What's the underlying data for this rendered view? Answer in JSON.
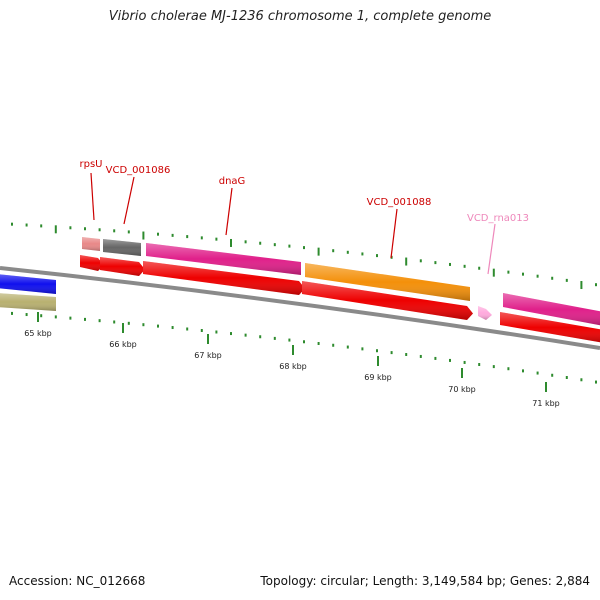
{
  "title": "Vibrio cholerae MJ-1236 chromosome 1, complete genome",
  "footer": {
    "accession": "Accession: NC_012668",
    "stats": "Topology: circular; Length: 3,149,584 bp; Genes: 2,884"
  },
  "colors": {
    "backbone": "#8a8a8a",
    "tick": "#2e8b2e",
    "label_gene": "#cc0000",
    "label_rna": "#ee88bb",
    "cds": "#ee0000"
  },
  "ticks": [
    {
      "label": "65 kbp"
    },
    {
      "label": "66 kbp"
    },
    {
      "label": "67 kbp"
    },
    {
      "label": "68 kbp"
    },
    {
      "label": "69 kbp"
    },
    {
      "label": "70 kbp"
    },
    {
      "label": "71 kbp"
    }
  ],
  "gene_labels": [
    {
      "name": "rpsU",
      "kind": "gene"
    },
    {
      "name": "VCD_001086",
      "kind": "gene"
    },
    {
      "name": "dnaG",
      "kind": "gene"
    },
    {
      "name": "VCD_001088",
      "kind": "gene"
    },
    {
      "name": "VCD_rna013",
      "kind": "rna"
    }
  ],
  "features": [
    {
      "name": "left-blue-feature",
      "color": "#1010ee"
    },
    {
      "name": "left-khaki-feature",
      "color": "#b8b070"
    },
    {
      "name": "rpsU-feature",
      "color": "#e88888"
    },
    {
      "name": "VCD_001086-feature",
      "color": "#666666"
    },
    {
      "name": "dnaG-feature",
      "color": "#e0208a"
    },
    {
      "name": "VCD_001088-feature",
      "color": "#f4900a"
    },
    {
      "name": "right-magenta-feature",
      "color": "#e0208a"
    }
  ],
  "cds": [
    {
      "name": "rpsU-cds",
      "color": "#ee0000"
    },
    {
      "name": "VCD_001086-cds",
      "color": "#ee0000"
    },
    {
      "name": "dnaG-cds",
      "color": "#ee0000"
    },
    {
      "name": "VCD_001088-cds",
      "color": "#ee0000"
    },
    {
      "name": "VCD_rna013-arrow",
      "color": "#ffaadd"
    },
    {
      "name": "right-cds",
      "color": "#ee0000"
    }
  ]
}
